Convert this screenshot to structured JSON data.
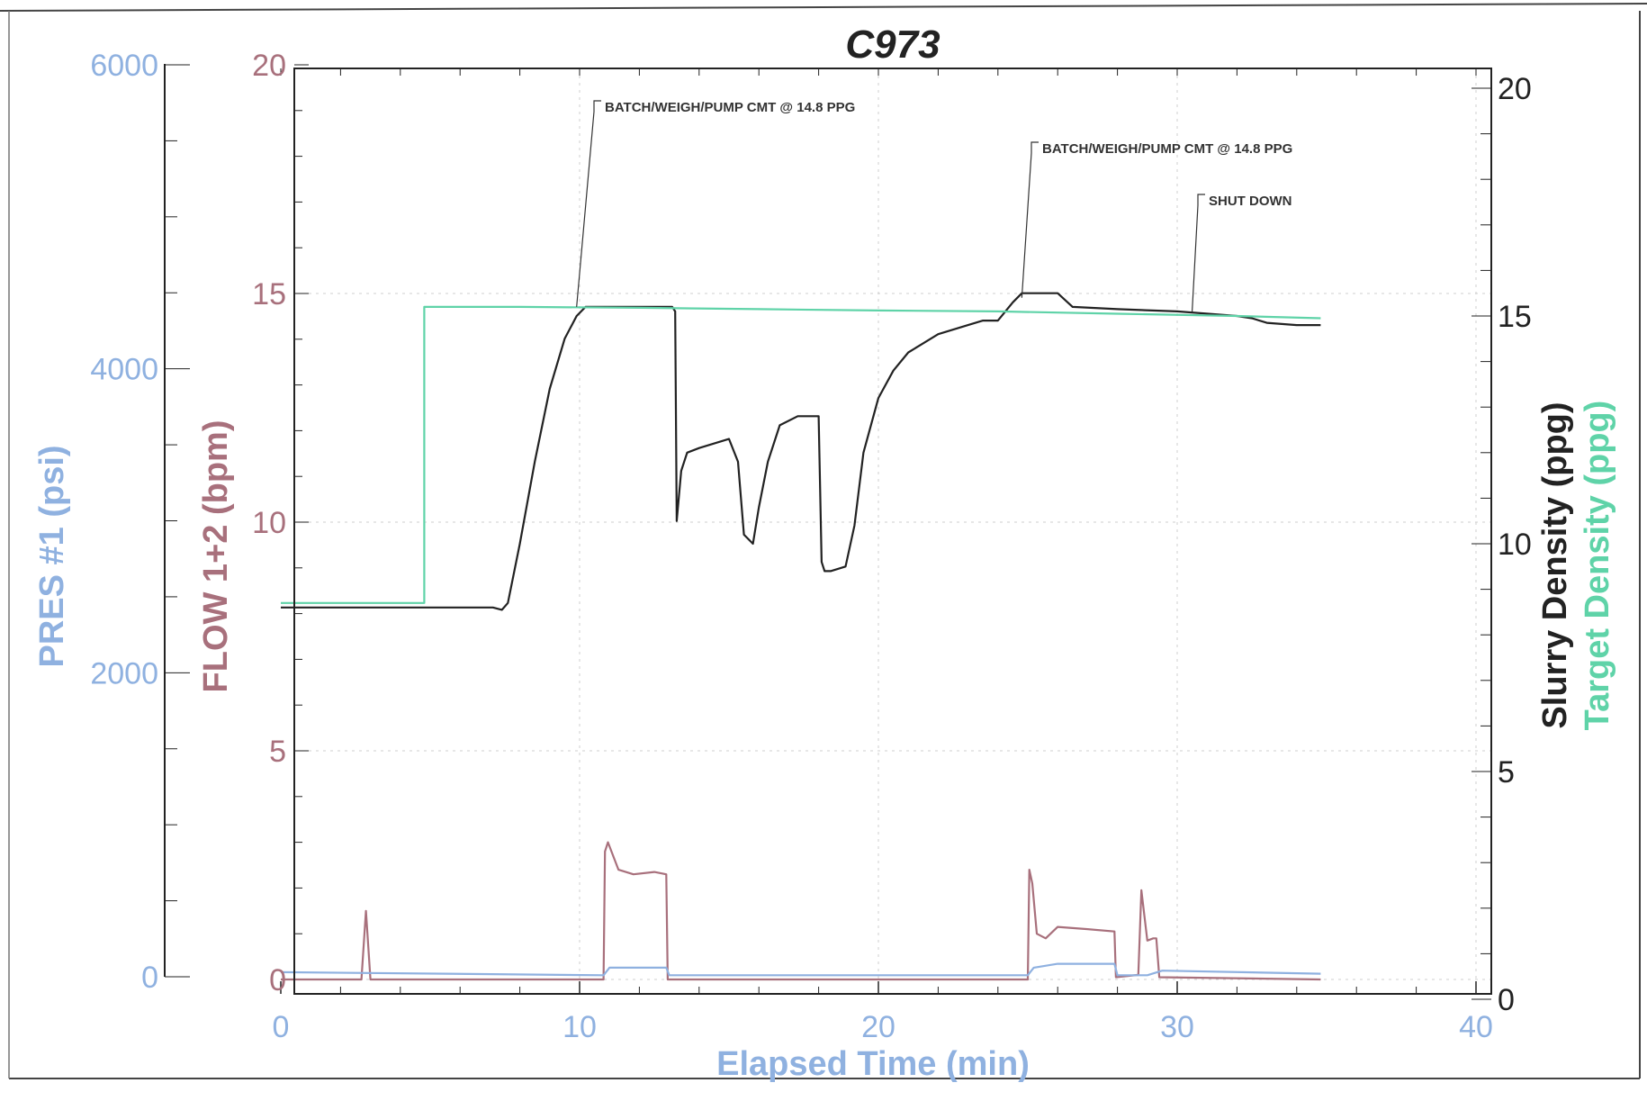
{
  "chart_data": {
    "type": "line",
    "title": "C973",
    "xlabel": "Elapsed Time (min)",
    "xlim": [
      0,
      40
    ],
    "x_ticks": [
      "0",
      "10",
      "20",
      "30",
      "40"
    ],
    "axes": {
      "pres": {
        "label": "PRES #1 (psi)",
        "ylim": [
          0,
          6000
        ],
        "ticks": [
          "0",
          "2000",
          "4000",
          "6000"
        ],
        "color": "#8fb1e0"
      },
      "flow": {
        "label": "FLOW 1+2 (bpm)",
        "ylim": [
          0,
          20
        ],
        "ticks": [
          "0",
          "5",
          "10",
          "15",
          "20"
        ],
        "color": "#a8707c"
      },
      "density": {
        "label_slurry": "Slurry Density (ppg)",
        "label_target": "Target Density (ppg)",
        "ylim": [
          0,
          20
        ],
        "ticks": [
          "0",
          "5",
          "10",
          "15",
          "20"
        ],
        "color": "#222222"
      }
    },
    "grid": true,
    "series": [
      {
        "name": "Slurry Density (ppg)",
        "axis": "density",
        "color": "#222222",
        "x": [
          0,
          7.1,
          7.4,
          7.6,
          8.0,
          8.5,
          9.0,
          9.5,
          9.9,
          10.2,
          12.5,
          13.1,
          13.2,
          13.25,
          13.4,
          13.6,
          14.0,
          15.0,
          15.3,
          15.5,
          15.8,
          16.0,
          16.3,
          16.7,
          17.3,
          18.0,
          18.1,
          18.2,
          18.4,
          18.9,
          19.2,
          19.5,
          20.0,
          20.5,
          21.0,
          22.0,
          23.0,
          23.5,
          24.0,
          24.5,
          24.8,
          25.1,
          26.0,
          26.5,
          28.0,
          30.0,
          32.0,
          32.5,
          33.0,
          34.0,
          34.8
        ],
        "y": [
          8.6,
          8.6,
          8.55,
          8.7,
          10.0,
          11.8,
          13.4,
          14.5,
          15.0,
          15.2,
          15.2,
          15.2,
          15.1,
          10.5,
          11.6,
          12.0,
          12.1,
          12.3,
          11.8,
          10.2,
          10.0,
          10.8,
          11.8,
          12.6,
          12.8,
          12.8,
          9.6,
          9.4,
          9.4,
          9.5,
          10.4,
          12.0,
          13.2,
          13.8,
          14.2,
          14.6,
          14.8,
          14.9,
          14.9,
          15.3,
          15.5,
          15.5,
          15.5,
          15.2,
          15.15,
          15.1,
          15.0,
          14.95,
          14.85,
          14.8,
          14.8
        ]
      },
      {
        "name": "Target Density (ppg)",
        "axis": "density",
        "color": "#5fd3a8",
        "x": [
          0,
          4.8,
          4.8,
          8.0,
          12.0,
          16.0,
          20.0,
          24.0,
          28.0,
          32.0,
          34.8
        ],
        "y": [
          8.7,
          8.7,
          15.2,
          15.2,
          15.18,
          15.15,
          15.12,
          15.1,
          15.05,
          15.0,
          14.95
        ]
      },
      {
        "name": "FLOW 1+2 (bpm)",
        "axis": "flow",
        "color": "#a8707c",
        "x": [
          0,
          2.7,
          2.85,
          3.0,
          10.8,
          10.85,
          10.95,
          11.3,
          11.8,
          12.5,
          12.9,
          12.95,
          13.0,
          25.0,
          25.05,
          25.15,
          25.3,
          25.6,
          26.0,
          27.0,
          27.9,
          27.95,
          28.7,
          28.8,
          28.9,
          29.0,
          29.2,
          29.3,
          29.4,
          34.8
        ],
        "y": [
          0,
          0,
          1.5,
          0,
          0,
          2.8,
          3.0,
          2.4,
          2.3,
          2.35,
          2.3,
          0,
          0,
          0,
          2.4,
          2.1,
          1.0,
          0.9,
          1.15,
          1.1,
          1.05,
          0.05,
          0.1,
          1.95,
          1.4,
          0.85,
          0.9,
          0.9,
          0.05,
          0
        ]
      },
      {
        "name": "PRES #1 (psi)",
        "axis": "pres",
        "color": "#8fb1e0",
        "x": [
          0,
          10.8,
          11.0,
          12.9,
          13.0,
          25.0,
          25.2,
          26.0,
          27.9,
          28.0,
          29.0,
          29.5,
          34.8
        ],
        "y": [
          30,
          10,
          60,
          60,
          10,
          10,
          60,
          85,
          85,
          10,
          10,
          40,
          20
        ]
      }
    ],
    "annotations": [
      {
        "text": "BATCH/WEIGH/PUMP CMT @ 14.8 PPG",
        "x": 9.9,
        "y": 15.2,
        "axis": "density"
      },
      {
        "text": "BATCH/WEIGH/PUMP CMT @ 14.8 PPG",
        "x": 24.8,
        "y": 15.4,
        "axis": "density"
      },
      {
        "text": "SHUT DOWN",
        "x": 30.5,
        "y": 15.1,
        "axis": "density"
      }
    ]
  }
}
